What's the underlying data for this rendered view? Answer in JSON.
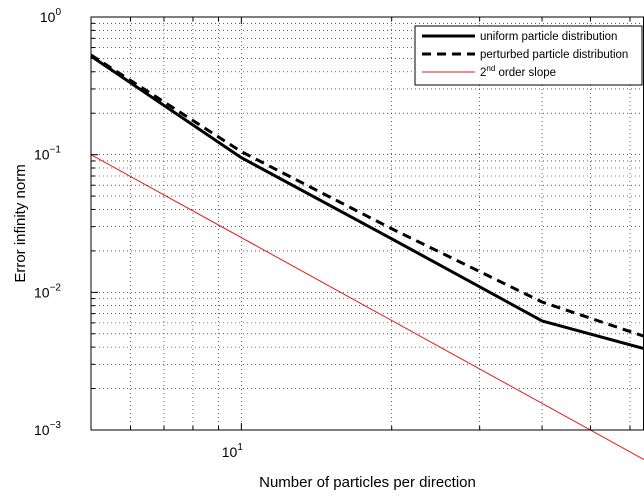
{
  "chart_data": {
    "type": "line",
    "xscale": "log",
    "yscale": "log",
    "xlim": [
      5,
      64
    ],
    "ylim": [
      0.001,
      1
    ],
    "grid": true,
    "xlabel": "Number of particles per direction",
    "ylabel": "Error infinity norm",
    "x_ticks": [
      {
        "base": "10",
        "exp": "1",
        "value": 10
      }
    ],
    "y_ticks": [
      {
        "base": "10",
        "exp": "0",
        "value": 1
      },
      {
        "base": "10",
        "exp": "−1",
        "value": 0.1
      },
      {
        "base": "10",
        "exp": "−2",
        "value": 0.01
      },
      {
        "base": "10",
        "exp": "−3",
        "value": 0.001
      }
    ],
    "legend": {
      "position": "top-right",
      "entries": [
        {
          "label": "uniform particle distribution",
          "style": "solid-thick",
          "color": "#000000"
        },
        {
          "label": "perturbed particle distribution",
          "style": "dashed-thick",
          "color": "#000000"
        },
        {
          "label_pre": "2",
          "label_sup": "nd",
          "label_post": " order slope",
          "style": "solid-thin",
          "color": "#e41a1c"
        }
      ]
    },
    "series": [
      {
        "name": "uniform particle distribution",
        "color": "#000000",
        "dash": "none",
        "width": 3,
        "x": [
          5,
          10,
          20,
          40,
          64
        ],
        "y": [
          0.52,
          0.095,
          0.0245,
          0.0062,
          0.0039
        ]
      },
      {
        "name": "perturbed particle distribution",
        "color": "#000000",
        "dash": "9,6",
        "width": 3,
        "x": [
          5,
          10,
          20,
          40,
          64
        ],
        "y": [
          0.53,
          0.105,
          0.029,
          0.0085,
          0.0048
        ]
      },
      {
        "name": "2nd order slope",
        "color": "#e41a1c",
        "dash": "none",
        "width": 1,
        "x": [
          5,
          64
        ],
        "y": [
          0.1,
          0.00061
        ]
      }
    ]
  }
}
